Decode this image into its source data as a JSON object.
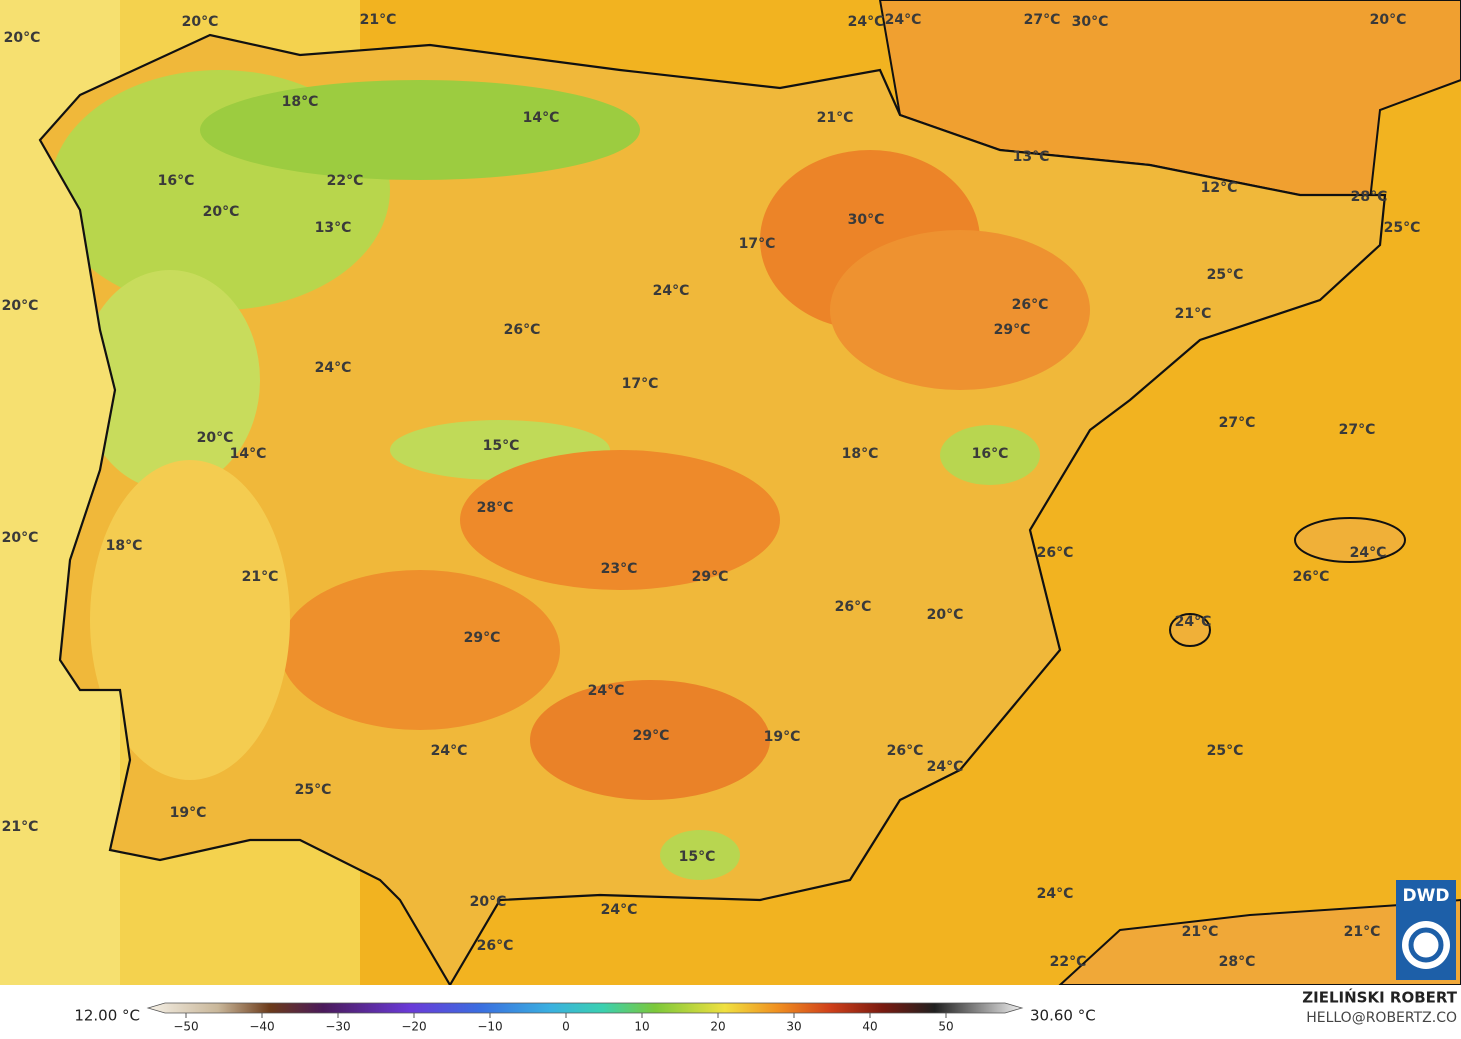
{
  "map": {
    "labels": [
      "20°C",
      "21°C",
      "24°C",
      "24°C",
      "27°C",
      "30°C",
      "20°C",
      "20°C",
      "18°C",
      "14°C",
      "21°C",
      "13°C",
      "12°C",
      "28°C",
      "25°C",
      "16°C",
      "22°C",
      "20°C",
      "13°C",
      "30°C",
      "17°C",
      "25°C",
      "24°C",
      "26°C",
      "20°C",
      "26°C",
      "29°C",
      "21°C",
      "24°C",
      "17°C",
      "27°C",
      "27°C",
      "20°C",
      "14°C",
      "15°C",
      "18°C",
      "16°C",
      "28°C",
      "20°C",
      "18°C",
      "26°C",
      "24°C",
      "23°C",
      "29°C",
      "21°C",
      "26°C",
      "26°C",
      "20°C",
      "29°C",
      "24°C",
      "24°C",
      "29°C",
      "19°C",
      "24°C",
      "26°C",
      "25°C",
      "24°C",
      "25°C",
      "19°C",
      "21°C",
      "15°C",
      "24°C",
      "20°C",
      "24°C",
      "21°C",
      "21°C",
      "26°C",
      "22°C",
      "28°C"
    ],
    "colorbar": {
      "min_label": "12.00 °C",
      "max_label": "30.60 °C",
      "lim": [
        -55,
        60
      ],
      "ticks": [
        {
          "value": -50,
          "label": "−50"
        },
        {
          "value": -40,
          "label": "−40"
        },
        {
          "value": -30,
          "label": "−30"
        },
        {
          "value": -20,
          "label": "−20"
        },
        {
          "value": -10,
          "label": "−10"
        },
        0,
        10,
        20,
        30,
        40,
        50
      ]
    },
    "credit": {
      "author": "ZIELIŃSKI ROBERT",
      "contact": "HELLO@ROBERTZ.CO",
      "logo": "DWD"
    }
  }
}
